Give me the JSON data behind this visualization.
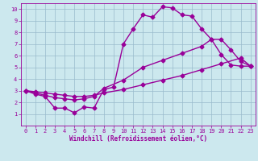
{
  "xlabel": "Windchill (Refroidissement éolien,°C)",
  "bg_color": "#cce8ee",
  "line_color": "#990099",
  "grid_color": "#99bbcc",
  "xlim": [
    -0.5,
    23.5
  ],
  "ylim": [
    0,
    10.5
  ],
  "xticks": [
    0,
    1,
    2,
    3,
    4,
    5,
    6,
    7,
    8,
    9,
    10,
    11,
    12,
    13,
    14,
    15,
    16,
    17,
    18,
    19,
    20,
    21,
    22,
    23
  ],
  "yticks": [
    1,
    2,
    3,
    4,
    5,
    6,
    7,
    8,
    9,
    10
  ],
  "curve1_x": [
    0,
    1,
    2,
    3,
    4,
    5,
    6,
    7,
    8,
    9,
    10,
    11,
    12,
    13,
    14,
    15,
    16,
    17,
    18,
    19,
    20,
    21,
    22,
    23
  ],
  "curve1_y": [
    3.0,
    2.7,
    2.5,
    1.5,
    1.5,
    1.1,
    1.6,
    1.5,
    3.1,
    3.3,
    7.0,
    8.3,
    9.5,
    9.3,
    10.2,
    10.1,
    9.5,
    9.4,
    8.3,
    7.4,
    6.1,
    5.2,
    5.1,
    5.1
  ],
  "curve2_x": [
    0,
    1,
    2,
    3,
    4,
    5,
    6,
    7,
    8,
    10,
    12,
    14,
    16,
    18,
    19,
    20,
    21,
    22,
    23
  ],
  "curve2_y": [
    3.0,
    2.8,
    2.6,
    2.4,
    2.3,
    2.2,
    2.3,
    2.5,
    3.2,
    3.9,
    5.0,
    5.6,
    6.2,
    6.8,
    7.4,
    7.4,
    6.5,
    5.5,
    5.1
  ],
  "curve3_x": [
    0,
    1,
    2,
    3,
    4,
    5,
    6,
    7,
    8,
    10,
    12,
    14,
    16,
    18,
    20,
    22,
    23
  ],
  "curve3_y": [
    3.0,
    2.9,
    2.8,
    2.7,
    2.6,
    2.5,
    2.5,
    2.6,
    2.8,
    3.1,
    3.5,
    3.9,
    4.3,
    4.8,
    5.3,
    5.8,
    5.1
  ],
  "marker": "D",
  "markersize": 2.5,
  "linewidth": 1.0,
  "tick_fontsize": 5.0,
  "label_fontsize": 5.5
}
